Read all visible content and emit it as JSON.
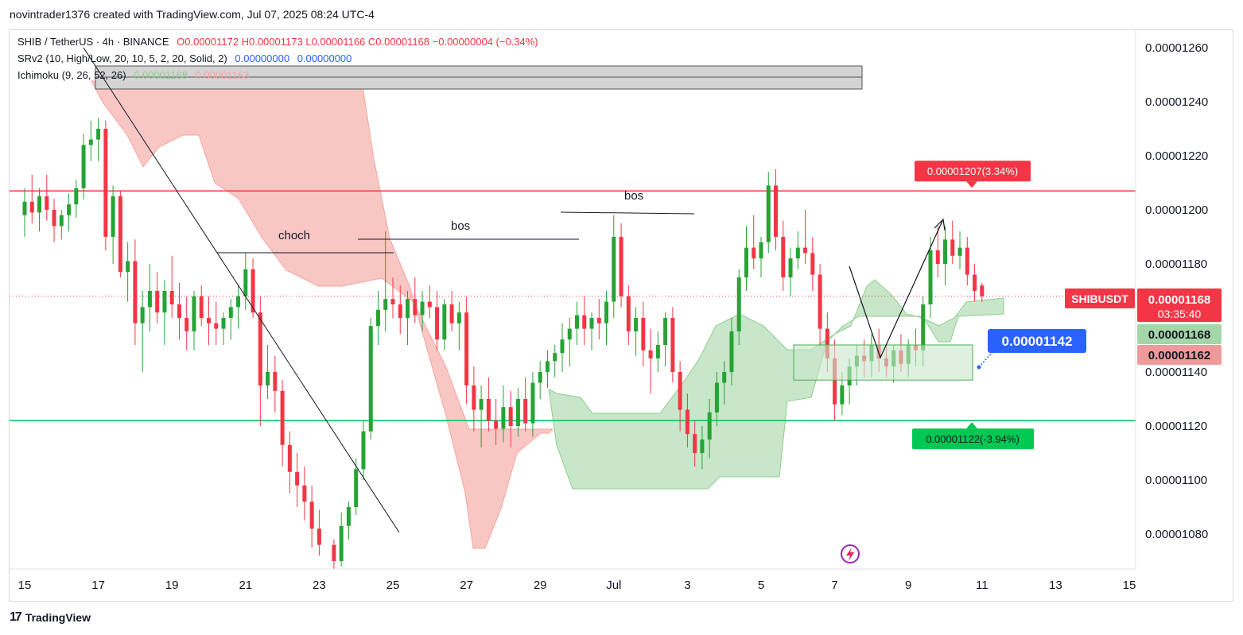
{
  "header": {
    "created": "novintrader1376 created with TradingView.com, Jul 07, 2025 08:24 UTC-4"
  },
  "legend": {
    "symbol": "SHIB / TetherUS · 4h · BINANCE",
    "o_label": "O",
    "o": "0.00001172",
    "h_label": "H",
    "h": "0.00001173",
    "l_label": "L",
    "l": "0.00001166",
    "c_label": "C",
    "c": "0.00001168",
    "change": "−0.00000004 (−0.34%)",
    "srv2_name": "SRv2 (10, High/Low, 20, 10, 5, 2, 20, Solid, 2)",
    "srv2_v1": "0.00000000",
    "srv2_v2": "0.00000000",
    "ichimoku_name": "Ichimoku (9, 26, 52, 26)",
    "ichimoku_v1": "0.00001168",
    "ichimoku_v2": "0.00001163"
  },
  "footer": {
    "brand": "TradingView"
  },
  "colors": {
    "up": "#089981",
    "up_candle": "#26a334",
    "down": "#f23645",
    "cloud_red": "#f8c7c4",
    "cloud_green": "#c8e6c9",
    "blue": "#2962ff",
    "green_line": "#00c853",
    "red_line": "#f23645"
  },
  "chart_data": {
    "type": "candlestick",
    "symbol": "SHIBUSDT",
    "timeframe": "4h",
    "x_labels": [
      "15",
      "17",
      "19",
      "21",
      "23",
      "25",
      "27",
      "29",
      "Jul",
      "3",
      "5",
      "7",
      "9",
      "11",
      "13",
      "15"
    ],
    "y_ticks": [
      "0.00001260",
      "0.00001240",
      "0.00001220",
      "0.00001200",
      "0.00001180",
      "0.00001140",
      "0.00001120",
      "0.00001100",
      "0.00001080"
    ],
    "ylim": [
      1.072e-05,
      1.265e-05
    ],
    "current_price": {
      "label": "SHIBUSDT",
      "value": "0.00001168",
      "countdown": "03:35:40"
    },
    "ichimoku_labels": [
      "0.00001168",
      "0.00001162"
    ],
    "levels": [
      {
        "value": 1.207e-05,
        "label": "0.00001207(3.34%)",
        "color": "red"
      },
      {
        "value": 1.122e-05,
        "label": "0.00001122(-3.94%)",
        "color": "green"
      }
    ],
    "marker": {
      "value": "0.00001142"
    },
    "annotations": [
      "choch",
      "bos",
      "bos"
    ],
    "candles": [
      [
        1.0,
        1.198e-05,
        1.208e-05,
        1.19e-05,
        1.203e-05
      ],
      [
        1.1,
        1.203e-05,
        1.213e-05,
        1.195e-05,
        1.199e-05
      ],
      [
        1.2,
        1.199e-05,
        1.208e-05,
        1.192e-05,
        1.205e-05
      ],
      [
        1.3,
        1.205e-05,
        1.213e-05,
        1.196e-05,
        1.2e-05
      ],
      [
        1.4,
        1.2e-05,
        1.204e-05,
        1.188e-05,
        1.194e-05
      ],
      [
        1.5,
        1.194e-05,
        1.2e-05,
        1.189e-05,
        1.198e-05
      ],
      [
        1.6,
        1.198e-05,
        1.206e-05,
        1.192e-05,
        1.202e-05
      ],
      [
        1.7,
        1.202e-05,
        1.211e-05,
        1.197e-05,
        1.208e-05
      ],
      [
        1.8,
        1.208e-05,
        1.228e-05,
        1.204e-05,
        1.224e-05
      ],
      [
        1.9,
        1.224e-05,
        1.233e-05,
        1.218e-05,
        1.226e-05
      ],
      [
        2.0,
        1.226e-05,
        1.234e-05,
        1.218e-05,
        1.23e-05
      ],
      [
        2.1,
        1.23e-05,
        1.233e-05,
        1.185e-05,
        1.19e-05
      ],
      [
        2.2,
        1.19e-05,
        1.209e-05,
        1.18e-05,
        1.205e-05
      ],
      [
        2.3,
        1.205e-05,
        1.207e-05,
        1.175e-05,
        1.177e-05
      ],
      [
        2.4,
        1.177e-05,
        1.188e-05,
        1.166e-05,
        1.181e-05
      ],
      [
        2.5,
        1.181e-05,
        1.189e-05,
        1.15e-05,
        1.158e-05
      ],
      [
        2.6,
        1.158e-05,
        1.17e-05,
        1.14e-05,
        1.164e-05
      ],
      [
        2.7,
        1.164e-05,
        1.18e-05,
        1.155e-05,
        1.17e-05
      ],
      [
        2.8,
        1.17e-05,
        1.177e-05,
        1.158e-05,
        1.162e-05
      ],
      [
        2.9,
        1.162e-05,
        1.174e-05,
        1.15e-05,
        1.17e-05
      ],
      [
        3.0,
        1.17e-05,
        1.183e-05,
        1.16e-05,
        1.165e-05
      ],
      [
        3.1,
        1.165e-05,
        1.173e-05,
        1.152e-05,
        1.16e-05
      ],
      [
        3.2,
        1.16e-05,
        1.168e-05,
        1.148e-05,
        1.155e-05
      ],
      [
        3.3,
        1.155e-05,
        1.17e-05,
        1.148e-05,
        1.168e-05
      ],
      [
        3.4,
        1.168e-05,
        1.172e-05,
        1.157e-05,
        1.16e-05
      ],
      [
        3.5,
        1.16e-05,
        1.168e-05,
        1.15e-05,
        1.158e-05
      ],
      [
        3.6,
        1.158e-05,
        1.166e-05,
        1.15e-05,
        1.156e-05
      ],
      [
        3.7,
        1.156e-05,
        1.162e-05,
        1.15e-05,
        1.16e-05
      ],
      [
        3.8,
        1.16e-05,
        1.167e-05,
        1.152e-05,
        1.164e-05
      ],
      [
        3.9,
        1.164e-05,
        1.172e-05,
        1.156e-05,
        1.168e-05
      ],
      [
        4.0,
        1.168e-05,
        1.184e-05,
        1.163e-05,
        1.178e-05
      ],
      [
        4.1,
        1.178e-05,
        1.182e-05,
        1.16e-05,
        1.162e-05
      ],
      [
        4.2,
        1.162e-05,
        1.168e-05,
        1.12e-05,
        1.135e-05
      ],
      [
        4.3,
        1.135e-05,
        1.15e-05,
        1.13e-05,
        1.14e-05
      ],
      [
        4.4,
        1.14e-05,
        1.146e-05,
        1.125e-05,
        1.133e-05
      ],
      [
        4.5,
        1.133e-05,
        1.137e-05,
        1.105e-05,
        1.113e-05
      ],
      [
        4.6,
        1.113e-05,
        1.118e-05,
        1.095e-05,
        1.103e-05
      ],
      [
        4.7,
        1.103e-05,
        1.11e-05,
        1.09e-05,
        1.098e-05
      ],
      [
        4.8,
        1.098e-05,
        1.105e-05,
        1.085e-05,
        1.092e-05
      ],
      [
        4.9,
        1.092e-05,
        1.098e-05,
        1.075e-05,
        1.082e-05
      ],
      [
        5.0,
        1.082e-05,
        1.089e-05,
        1.072e-05,
        1.076e-05
      ],
      [
        5.2,
        1.076e-05,
        1.078e-05,
        1.06e-05,
        1.07e-05
      ],
      [
        5.3,
        1.07e-05,
        1.088e-05,
        1.068e-05,
        1.083e-05
      ],
      [
        5.4,
        1.083e-05,
        1.092e-05,
        1.078e-05,
        1.09e-05
      ],
      [
        5.5,
        1.09e-05,
        1.108e-05,
        1.087e-05,
        1.104e-05
      ],
      [
        5.6,
        1.104e-05,
        1.122e-05,
        1.1e-05,
        1.118e-05
      ],
      [
        5.7,
        1.118e-05,
        1.16e-05,
        1.115e-05,
        1.157e-05
      ],
      [
        5.8,
        1.157e-05,
        1.17e-05,
        1.15e-05,
        1.163e-05
      ],
      [
        5.9,
        1.163e-05,
        1.192e-05,
        1.155e-05,
        1.167e-05
      ],
      [
        6.0,
        1.167e-05,
        1.175e-05,
        1.16e-05,
        1.165e-05
      ],
      [
        6.1,
        1.165e-05,
        1.172e-05,
        1.154e-05,
        1.16e-05
      ],
      [
        6.2,
        1.16e-05,
        1.17e-05,
        1.15e-05,
        1.167e-05
      ],
      [
        6.3,
        1.167e-05,
        1.175e-05,
        1.158e-05,
        1.161e-05
      ],
      [
        6.4,
        1.161e-05,
        1.17e-05,
        1.155e-05,
        1.166e-05
      ],
      [
        6.5,
        1.166e-05,
        1.172e-05,
        1.16e-05,
        1.164e-05
      ],
      [
        6.6,
        1.164e-05,
        1.17e-05,
        1.148e-05,
        1.152e-05
      ],
      [
        6.7,
        1.152e-05,
        1.167e-05,
        1.148e-05,
        1.165e-05
      ],
      [
        6.8,
        1.165e-05,
        1.17e-05,
        1.155e-05,
        1.158e-05
      ],
      [
        6.9,
        1.158e-05,
        1.166e-05,
        1.148e-05,
        1.162e-05
      ],
      [
        7.0,
        1.162e-05,
        1.168e-05,
        1.128e-05,
        1.135e-05
      ],
      [
        7.1,
        1.135e-05,
        1.142e-05,
        1.118e-05,
        1.126e-05
      ],
      [
        7.2,
        1.126e-05,
        1.135e-05,
        1.112e-05,
        1.13e-05
      ],
      [
        7.3,
        1.13e-05,
        1.138e-05,
        1.118e-05,
        1.122e-05
      ],
      [
        7.4,
        1.122e-05,
        1.13e-05,
        1.113e-05,
        1.119e-05
      ],
      [
        7.5,
        1.119e-05,
        1.135e-05,
        1.114e-05,
        1.127e-05
      ],
      [
        7.6,
        1.127e-05,
        1.133e-05,
        1.112e-05,
        1.12e-05
      ],
      [
        7.7,
        1.12e-05,
        1.134e-05,
        1.116e-05,
        1.13e-05
      ],
      [
        7.8,
        1.13e-05,
        1.138e-05,
        1.118e-05,
        1.121e-05
      ],
      [
        7.9,
        1.121e-05,
        1.14e-05,
        1.116e-05,
        1.136e-05
      ],
      [
        8.0,
        1.136e-05,
        1.144e-05,
        1.13e-05,
        1.14e-05
      ],
      [
        8.1,
        1.14e-05,
        1.148e-05,
        1.134e-05,
        1.144e-05
      ],
      [
        8.2,
        1.144e-05,
        1.15e-05,
        1.138e-05,
        1.147e-05
      ],
      [
        8.3,
        1.147e-05,
        1.158e-05,
        1.14e-05,
        1.152e-05
      ],
      [
        8.4,
        1.152e-05,
        1.16e-05,
        1.142e-05,
        1.156e-05
      ],
      [
        8.5,
        1.156e-05,
        1.166e-05,
        1.15e-05,
        1.161e-05
      ],
      [
        8.6,
        1.161e-05,
        1.168e-05,
        1.15e-05,
        1.156e-05
      ],
      [
        8.7,
        1.156e-05,
        1.162e-05,
        1.148e-05,
        1.16e-05
      ],
      [
        8.8,
        1.16e-05,
        1.167e-05,
        1.152e-05,
        1.158e-05
      ],
      [
        8.9,
        1.158e-05,
        1.17e-05,
        1.15e-05,
        1.166e-05
      ],
      [
        9.0,
        1.166e-05,
        1.198e-05,
        1.16e-05,
        1.19e-05
      ],
      [
        9.1,
        1.19e-05,
        1.195e-05,
        1.164e-05,
        1.168e-05
      ],
      [
        9.2,
        1.168e-05,
        1.172e-05,
        1.15e-05,
        1.155e-05
      ],
      [
        9.3,
        1.155e-05,
        1.164e-05,
        1.146e-05,
        1.16e-05
      ],
      [
        9.4,
        1.16e-05,
        1.166e-05,
        1.142e-05,
        1.148e-05
      ],
      [
        9.5,
        1.148e-05,
        1.156e-05,
        1.132e-05,
        1.145e-05
      ],
      [
        9.6,
        1.145e-05,
        1.155e-05,
        1.14e-05,
        1.15e-05
      ],
      [
        9.7,
        1.15e-05,
        1.162e-05,
        1.142e-05,
        1.16e-05
      ],
      [
        9.8,
        1.16e-05,
        1.164e-05,
        1.136e-05,
        1.14e-05
      ],
      [
        9.9,
        1.14e-05,
        1.144e-05,
        1.118e-05,
        1.126e-05
      ],
      [
        10.0,
        1.126e-05,
        1.132e-05,
        1.112e-05,
        1.117e-05
      ],
      [
        10.1,
        1.117e-05,
        1.122e-05,
        1.105e-05,
        1.11e-05
      ],
      [
        10.2,
        1.11e-05,
        1.12e-05,
        1.104e-05,
        1.115e-05
      ],
      [
        10.3,
        1.115e-05,
        1.13e-05,
        1.108e-05,
        1.125e-05
      ],
      [
        10.4,
        1.125e-05,
        1.14e-05,
        1.12e-05,
        1.136e-05
      ],
      [
        10.5,
        1.136e-05,
        1.144e-05,
        1.128e-05,
        1.14e-05
      ],
      [
        10.6,
        1.14e-05,
        1.16e-05,
        1.135e-05,
        1.155e-05
      ],
      [
        10.7,
        1.155e-05,
        1.178e-05,
        1.15e-05,
        1.175e-05
      ],
      [
        10.8,
        1.175e-05,
        1.194e-05,
        1.17e-05,
        1.186e-05
      ],
      [
        10.9,
        1.186e-05,
        1.198e-05,
        1.178e-05,
        1.182e-05
      ],
      [
        11.0,
        1.182e-05,
        1.19e-05,
        1.175e-05,
        1.188e-05
      ],
      [
        11.1,
        1.188e-05,
        1.214e-05,
        1.184e-05,
        1.209e-05
      ],
      [
        11.2,
        1.209e-05,
        1.215e-05,
        1.185e-05,
        1.19e-05
      ],
      [
        11.3,
        1.19e-05,
        1.196e-05,
        1.17e-05,
        1.175e-05
      ],
      [
        11.4,
        1.175e-05,
        1.186e-05,
        1.168e-05,
        1.182e-05
      ],
      [
        11.5,
        1.182e-05,
        1.192e-05,
        1.178e-05,
        1.186e-05
      ],
      [
        11.6,
        1.186e-05,
        1.2e-05,
        1.18e-05,
        1.184e-05
      ],
      [
        11.7,
        1.184e-05,
        1.19e-05,
        1.17e-05,
        1.176e-05
      ],
      [
        11.8,
        1.176e-05,
        1.18e-05,
        1.15e-05,
        1.156e-05
      ],
      [
        11.9,
        1.156e-05,
        1.162e-05,
        1.14e-05,
        1.145e-05
      ],
      [
        12.0,
        1.145e-05,
        1.152e-05,
        1.122e-05,
        1.128e-05
      ],
      [
        12.1,
        1.128e-05,
        1.14e-05,
        1.124e-05,
        1.135e-05
      ],
      [
        12.2,
        1.135e-05,
        1.145e-05,
        1.128e-05,
        1.142e-05
      ],
      [
        12.3,
        1.142e-05,
        1.15e-05,
        1.135e-05,
        1.146e-05
      ],
      [
        12.4,
        1.146e-05,
        1.152e-05,
        1.138e-05,
        1.144e-05
      ],
      [
        12.5,
        1.144e-05,
        1.154e-05,
        1.138e-05,
        1.15e-05
      ],
      [
        12.6,
        1.15e-05,
        1.156e-05,
        1.14e-05,
        1.145e-05
      ],
      [
        12.7,
        1.145e-05,
        1.15e-05,
        1.138e-05,
        1.142e-05
      ],
      [
        12.8,
        1.142e-05,
        1.15e-05,
        1.136e-05,
        1.148e-05
      ],
      [
        12.9,
        1.148e-05,
        1.154e-05,
        1.14e-05,
        1.143e-05
      ],
      [
        13.0,
        1.143e-05,
        1.152e-05,
        1.138e-05,
        1.15e-05
      ],
      [
        13.1,
        1.15e-05,
        1.156e-05,
        1.142e-05,
        1.148e-05
      ],
      [
        13.2,
        1.148e-05,
        1.168e-05,
        1.142e-05,
        1.165e-05
      ],
      [
        13.3,
        1.165e-05,
        1.19e-05,
        1.16e-05,
        1.185e-05
      ],
      [
        13.4,
        1.185e-05,
        1.194e-05,
        1.175e-05,
        1.18e-05
      ],
      [
        13.5,
        1.18e-05,
        1.194e-05,
        1.172e-05,
        1.189e-05
      ],
      [
        13.6,
        1.189e-05,
        1.196e-05,
        1.18e-05,
        1.183e-05
      ],
      [
        13.7,
        1.183e-05,
        1.192e-05,
        1.178e-05,
        1.186e-05
      ],
      [
        13.8,
        1.186e-05,
        1.19e-05,
        1.172e-05,
        1.176e-05
      ],
      [
        13.9,
        1.176e-05,
        1.18e-05,
        1.166e-05,
        1.17e-05
      ],
      [
        14.0,
        1.172e-05,
        1.173e-05,
        1.166e-05,
        1.168e-05
      ]
    ]
  }
}
